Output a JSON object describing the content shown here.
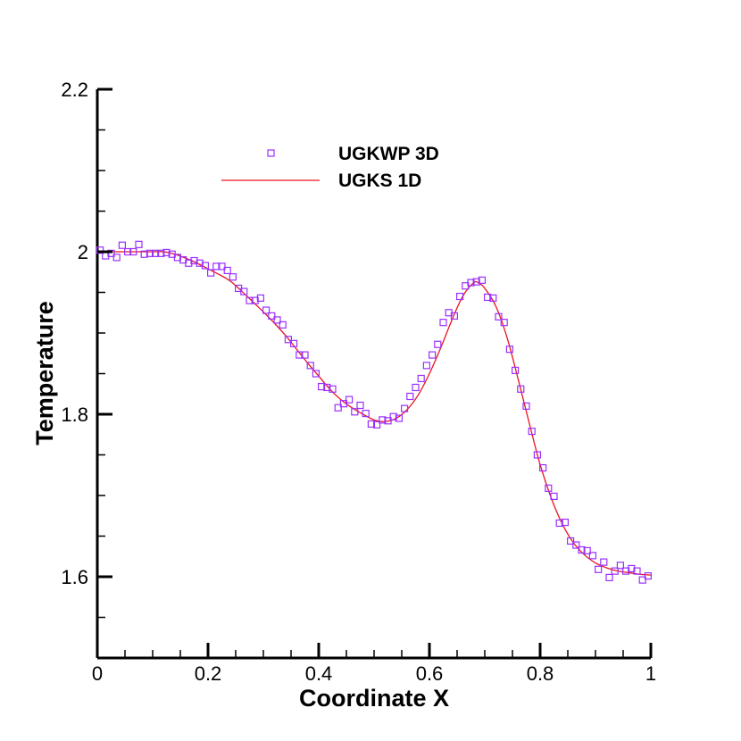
{
  "chart_data": {
    "type": "scatter",
    "xlabel": "Coordinate X",
    "ylabel": "Temperature",
    "xlim": [
      0,
      1
    ],
    "ylim": [
      1.5,
      2.2
    ],
    "x_ticks": [
      0,
      0.2,
      0.4,
      0.6,
      0.8,
      1
    ],
    "x_tick_labels": [
      "0",
      "0.2",
      "0.4",
      "0.6",
      "0.8",
      "1"
    ],
    "y_ticks": [
      1.6,
      1.8,
      2.0,
      2.2
    ],
    "y_tick_labels": [
      "1.6",
      "1.8",
      "2",
      "2.2"
    ],
    "grid": false,
    "legend": "top-center",
    "series": [
      {
        "name": "UGKWP 3D",
        "style": "markers",
        "marker": "square",
        "color": "#9b30ff",
        "x": [
          0.005,
          0.015,
          0.025,
          0.035,
          0.045,
          0.055,
          0.065,
          0.075,
          0.085,
          0.095,
          0.105,
          0.115,
          0.125,
          0.135,
          0.145,
          0.155,
          0.165,
          0.175,
          0.185,
          0.195,
          0.205,
          0.215,
          0.225,
          0.235,
          0.245,
          0.255,
          0.265,
          0.275,
          0.285,
          0.295,
          0.305,
          0.315,
          0.325,
          0.335,
          0.345,
          0.355,
          0.365,
          0.375,
          0.385,
          0.395,
          0.405,
          0.415,
          0.425,
          0.435,
          0.445,
          0.455,
          0.465,
          0.475,
          0.485,
          0.495,
          0.505,
          0.515,
          0.525,
          0.535,
          0.545,
          0.555,
          0.565,
          0.575,
          0.585,
          0.595,
          0.605,
          0.615,
          0.625,
          0.635,
          0.645,
          0.655,
          0.665,
          0.675,
          0.685,
          0.695,
          0.705,
          0.715,
          0.725,
          0.735,
          0.745,
          0.755,
          0.765,
          0.775,
          0.785,
          0.795,
          0.805,
          0.815,
          0.825,
          0.835,
          0.845,
          0.855,
          0.865,
          0.875,
          0.885,
          0.895,
          0.905,
          0.915,
          0.925,
          0.935,
          0.945,
          0.955,
          0.965,
          0.975,
          0.985,
          0.995
        ],
        "y": [
          2.002,
          1.995,
          1.998,
          1.993,
          2.008,
          2.0,
          2.0,
          2.009,
          1.997,
          1.998,
          1.998,
          1.998,
          1.999,
          1.997,
          1.993,
          1.99,
          1.986,
          1.989,
          1.986,
          1.983,
          1.974,
          1.982,
          1.982,
          1.977,
          1.969,
          1.955,
          1.951,
          1.94,
          1.94,
          1.943,
          1.928,
          1.921,
          1.916,
          1.91,
          1.892,
          1.887,
          1.873,
          1.873,
          1.86,
          1.85,
          1.834,
          1.833,
          1.831,
          1.808,
          1.813,
          1.818,
          1.803,
          1.811,
          1.801,
          1.788,
          1.787,
          1.793,
          1.792,
          1.797,
          1.795,
          1.807,
          1.822,
          1.833,
          1.844,
          1.86,
          1.873,
          1.886,
          1.913,
          1.925,
          1.921,
          1.945,
          1.958,
          1.962,
          1.963,
          1.965,
          1.944,
          1.943,
          1.92,
          1.913,
          1.88,
          1.854,
          1.831,
          1.81,
          1.779,
          1.75,
          1.734,
          1.709,
          1.699,
          1.666,
          1.667,
          1.644,
          1.639,
          1.633,
          1.632,
          1.626,
          1.609,
          1.618,
          1.599,
          1.607,
          1.614,
          1.607,
          1.61,
          1.607,
          1.596,
          1.601
        ]
      },
      {
        "name": "UGKS 1D",
        "style": "line",
        "color": "#e8141e",
        "x": [
          0,
          0.02,
          0.04,
          0.06,
          0.08,
          0.1,
          0.12,
          0.14,
          0.16,
          0.18,
          0.2,
          0.22,
          0.24,
          0.26,
          0.28,
          0.3,
          0.32,
          0.34,
          0.36,
          0.38,
          0.4,
          0.42,
          0.44,
          0.46,
          0.48,
          0.5,
          0.52,
          0.54,
          0.56,
          0.58,
          0.6,
          0.62,
          0.64,
          0.66,
          0.68,
          0.69,
          0.7,
          0.72,
          0.74,
          0.76,
          0.78,
          0.8,
          0.82,
          0.84,
          0.86,
          0.88,
          0.9,
          0.92,
          0.94,
          0.96,
          0.98,
          1.0
        ],
        "y": [
          2.0,
          2.0,
          2.0,
          2.0,
          2.0,
          2.0,
          2.0,
          1.997,
          1.992,
          1.986,
          1.979,
          1.972,
          1.964,
          1.952,
          1.939,
          1.926,
          1.912,
          1.897,
          1.88,
          1.863,
          1.847,
          1.831,
          1.818,
          1.808,
          1.8,
          1.793,
          1.791,
          1.795,
          1.806,
          1.824,
          1.85,
          1.881,
          1.915,
          1.945,
          1.962,
          1.961,
          1.955,
          1.933,
          1.895,
          1.844,
          1.79,
          1.738,
          1.697,
          1.665,
          1.642,
          1.627,
          1.617,
          1.611,
          1.607,
          1.605,
          1.603,
          1.602
        ]
      }
    ]
  }
}
